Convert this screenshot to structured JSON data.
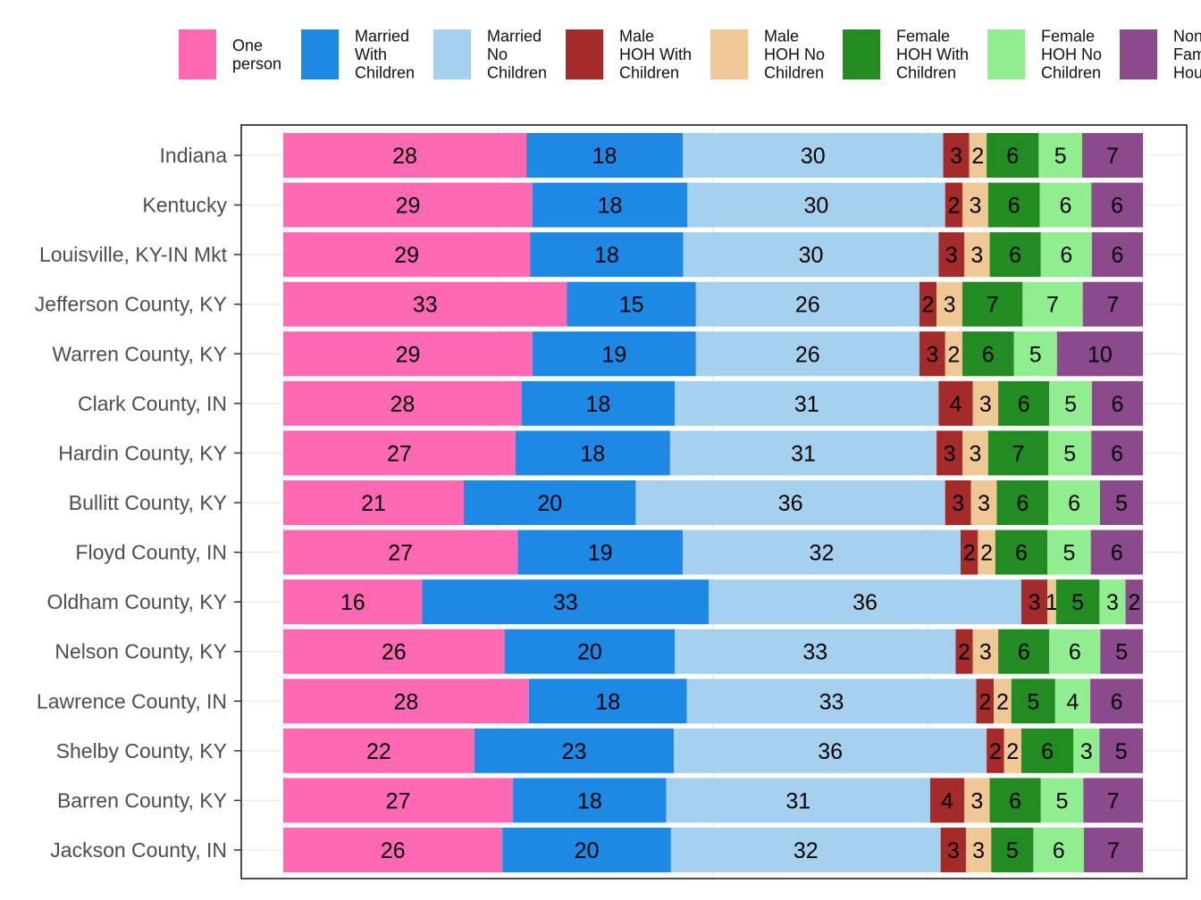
{
  "chart_data": {
    "type": "bar",
    "orientation": "horizontal",
    "stacked": true,
    "percent_scale": true,
    "grid": true,
    "legend_position": "top",
    "title": "",
    "xlabel": "",
    "ylabel": "",
    "categories": [
      "Indiana",
      "Kentucky",
      "Louisville, KY-IN Mkt",
      "Jefferson County, KY",
      "Warren County, KY",
      "Clark County, IN",
      "Hardin County, KY",
      "Bullitt County, KY",
      "Floyd County, IN",
      "Oldham County, KY",
      "Nelson County, KY",
      "Lawrence County, IN",
      "Shelby County, KY",
      "Barren County, KY",
      "Jackson County, IN"
    ],
    "series": [
      {
        "name": "One person",
        "color": "#ff69b4",
        "values": [
          28,
          29,
          29,
          33,
          29,
          28,
          27,
          21,
          27,
          16,
          26,
          28,
          22,
          27,
          26
        ]
      },
      {
        "name": "Married With Children",
        "color": "#1e88e5",
        "values": [
          18,
          18,
          18,
          15,
          19,
          18,
          18,
          20,
          19,
          33,
          20,
          18,
          23,
          18,
          20
        ]
      },
      {
        "name": "Married No Children",
        "color": "#a6d1ee",
        "values": [
          30,
          30,
          30,
          26,
          26,
          31,
          31,
          36,
          32,
          36,
          33,
          33,
          36,
          31,
          32
        ]
      },
      {
        "name": "Male HOH With Children",
        "color": "#a52a2a",
        "values": [
          3,
          2,
          3,
          2,
          3,
          4,
          3,
          3,
          2,
          3,
          2,
          2,
          2,
          4,
          3
        ]
      },
      {
        "name": "Male HOH No Children",
        "color": "#f0c896",
        "values": [
          2,
          3,
          3,
          3,
          2,
          3,
          3,
          3,
          2,
          1,
          3,
          2,
          2,
          3,
          3
        ]
      },
      {
        "name": "Female HOH With Children",
        "color": "#228b22",
        "values": [
          6,
          6,
          6,
          7,
          6,
          6,
          7,
          6,
          6,
          5,
          6,
          5,
          6,
          6,
          5
        ]
      },
      {
        "name": "Female HOH No Children",
        "color": "#90ee90",
        "values": [
          5,
          6,
          6,
          7,
          5,
          5,
          5,
          6,
          5,
          3,
          6,
          4,
          3,
          5,
          6
        ]
      },
      {
        "name": "Non Family Households",
        "color": "#8b4a8c",
        "values": [
          7,
          6,
          6,
          7,
          10,
          6,
          6,
          5,
          6,
          2,
          5,
          6,
          5,
          7,
          7
        ]
      }
    ]
  }
}
